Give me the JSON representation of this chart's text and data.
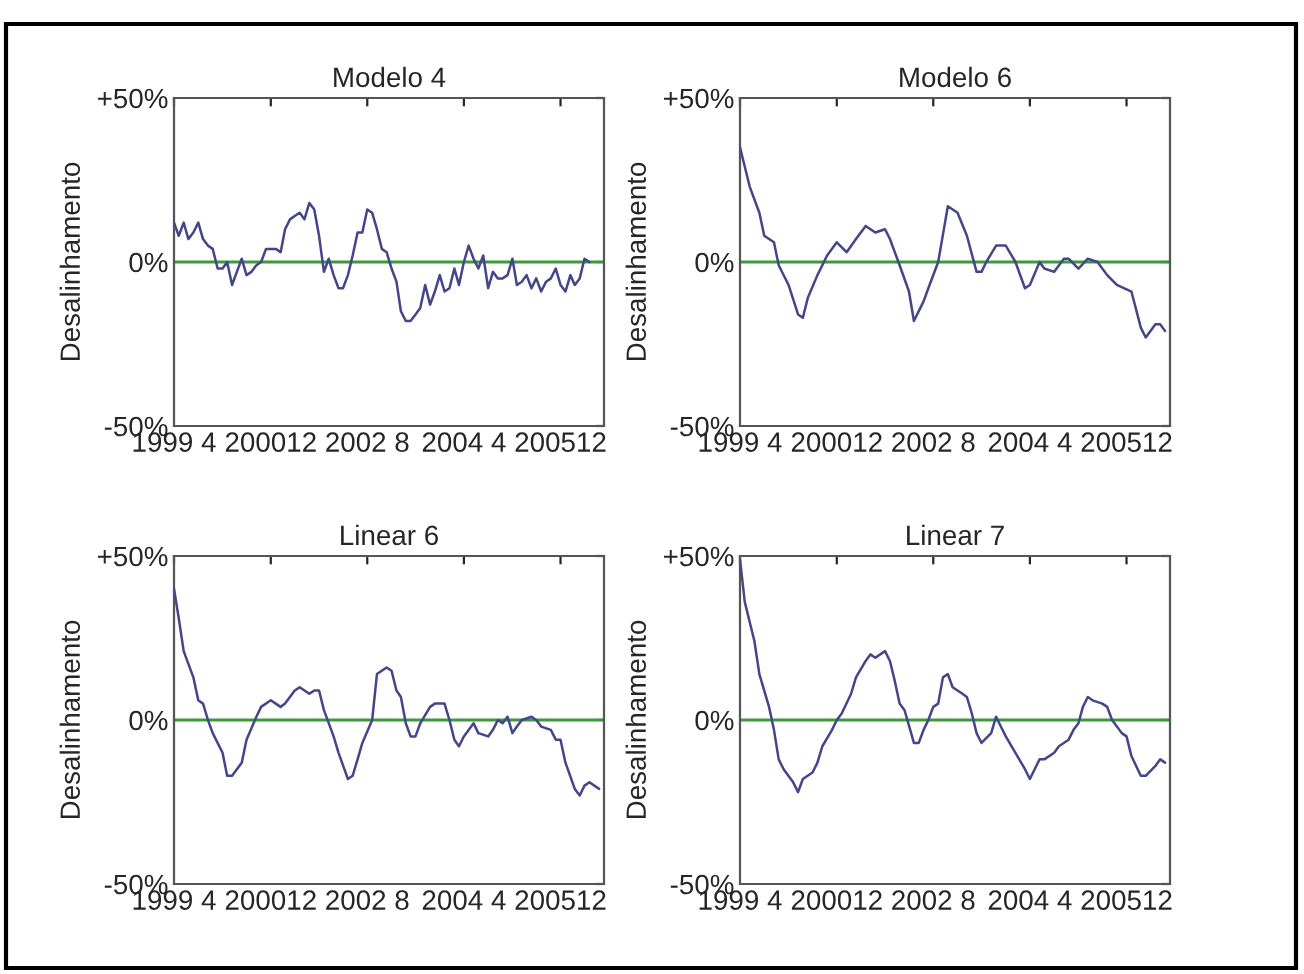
{
  "chart_data": [
    {
      "type": "line",
      "title": "Modelo 4",
      "ylabel": "Desalinhamento",
      "xlim": [
        "1999-04",
        "2006-09"
      ],
      "xticks": [
        {
          "value": "1999-04",
          "label": "1999 4"
        },
        {
          "value": "2000-12",
          "label": "200012"
        },
        {
          "value": "2002-08",
          "label": "2002 8"
        },
        {
          "value": "2004-04",
          "label": "2004 4"
        },
        {
          "value": "2005-12",
          "label": "200512"
        }
      ],
      "ylim": [
        -50,
        50
      ],
      "yticks": [
        {
          "value": -50,
          "label": "-50%"
        },
        {
          "value": 0,
          "label": "0%"
        },
        {
          "value": 50,
          "label": "+50%"
        }
      ],
      "grid": false,
      "legend": false,
      "ref_lines": [
        {
          "axis": "y",
          "value": 0,
          "color": "#3c9a3c"
        }
      ],
      "series": [
        {
          "color": "#45458a",
          "x": [
            "1999-04",
            "1999-05",
            "1999-06",
            "1999-07",
            "1999-08",
            "1999-09",
            "1999-10",
            "1999-11",
            "1999-12",
            "2000-01",
            "2000-02",
            "2000-03",
            "2000-04",
            "2000-05",
            "2000-06",
            "2000-07",
            "2000-08",
            "2000-09",
            "2000-10",
            "2000-11",
            "2000-12",
            "2001-01",
            "2001-02",
            "2001-03",
            "2001-04",
            "2001-05",
            "2001-06",
            "2001-07",
            "2001-08",
            "2001-09",
            "2001-10",
            "2001-11",
            "2001-12",
            "2002-01",
            "2002-02",
            "2002-03",
            "2002-04",
            "2002-05",
            "2002-06",
            "2002-07",
            "2002-08",
            "2002-09",
            "2002-10",
            "2002-11",
            "2002-12",
            "2003-01",
            "2003-02",
            "2003-03",
            "2003-04",
            "2003-05",
            "2003-06",
            "2003-07",
            "2003-08",
            "2003-09",
            "2003-10",
            "2003-11",
            "2003-12",
            "2004-01",
            "2004-02",
            "2004-03",
            "2004-04",
            "2004-05",
            "2004-06",
            "2004-07",
            "2004-08",
            "2004-09",
            "2004-10",
            "2004-11",
            "2004-12",
            "2005-01",
            "2005-02",
            "2005-03",
            "2005-04",
            "2005-05",
            "2005-06",
            "2005-07",
            "2005-08",
            "2005-09",
            "2005-10",
            "2005-11",
            "2005-12",
            "2006-01",
            "2006-02",
            "2006-03",
            "2006-04",
            "2006-05",
            "2006-06"
          ],
          "values": [
            12,
            8,
            12,
            7,
            9,
            12,
            7,
            5,
            4,
            -2,
            -2,
            0,
            -7,
            -3,
            1,
            -4,
            -3,
            -1,
            0,
            4,
            4,
            4,
            3,
            10,
            13,
            14,
            15,
            13,
            18,
            16,
            8,
            -3,
            1,
            -4,
            -8,
            -8,
            -4,
            2,
            9,
            9,
            16,
            15,
            10,
            4,
            3,
            -2,
            -6,
            -15,
            -18,
            -18,
            -16,
            -14,
            -7,
            -13,
            -9,
            -4,
            -9,
            -8,
            -2,
            -7,
            0,
            5,
            1,
            -2,
            2,
            -8,
            -3,
            -5,
            -5,
            -4,
            1,
            -7,
            -6,
            -4,
            -8,
            -5,
            -9,
            -6,
            -5,
            -2,
            -7,
            -9,
            -4,
            -7,
            -5,
            1,
            0
          ]
        }
      ]
    },
    {
      "type": "line",
      "title": "Modelo 6",
      "ylabel": "Desalinhamento",
      "xlim": [
        "1999-04",
        "2006-09"
      ],
      "xticks": [
        {
          "value": "1999-04",
          "label": "1999 4"
        },
        {
          "value": "2000-12",
          "label": "200012"
        },
        {
          "value": "2002-08",
          "label": "2002 8"
        },
        {
          "value": "2004-04",
          "label": "2004 4"
        },
        {
          "value": "2005-12",
          "label": "200512"
        }
      ],
      "ylim": [
        -50,
        50
      ],
      "yticks": [
        {
          "value": -50,
          "label": "-50%"
        },
        {
          "value": 0,
          "label": "0%"
        },
        {
          "value": 50,
          "label": "+50%"
        }
      ],
      "grid": false,
      "legend": false,
      "ref_lines": [
        {
          "axis": "y",
          "value": 0,
          "color": "#3c9a3c"
        }
      ],
      "series": [
        {
          "color": "#45458a",
          "x": [
            "1999-04",
            "1999-06",
            "1999-08",
            "1999-09",
            "1999-11",
            "1999-12",
            "2000-02",
            "2000-04",
            "2000-05",
            "2000-06",
            "2000-08",
            "2000-10",
            "2000-12",
            "2001-02",
            "2001-04",
            "2001-06",
            "2001-08",
            "2001-10",
            "2001-11",
            "2002-01",
            "2002-03",
            "2002-04",
            "2002-06",
            "2002-07",
            "2002-09",
            "2002-11",
            "2003-01",
            "2003-03",
            "2003-05",
            "2003-06",
            "2003-07",
            "2003-09",
            "2003-11",
            "2004-01",
            "2004-03",
            "2004-04",
            "2004-06",
            "2004-07",
            "2004-09",
            "2004-11",
            "2004-12",
            "2005-02",
            "2005-04",
            "2005-06",
            "2005-08",
            "2005-10",
            "2006-01",
            "2006-03",
            "2006-04",
            "2006-06",
            "2006-07",
            "2006-08"
          ],
          "values": [
            35,
            23,
            15,
            8,
            6,
            -1,
            -7,
            -16,
            -17,
            -11,
            -4,
            2,
            6,
            3,
            7,
            11,
            9,
            10,
            7,
            -1,
            -9,
            -18,
            -12,
            -8,
            0,
            17,
            15,
            8,
            -3,
            -3,
            0,
            5,
            5,
            0,
            -8,
            -7,
            0,
            -2,
            -3,
            1,
            1,
            -2,
            1,
            0,
            -4,
            -7,
            -9,
            -20,
            -23,
            -19,
            -19,
            -21
          ]
        }
      ]
    },
    {
      "type": "line",
      "title": "Linear 6",
      "ylabel": "Desalinhamento",
      "xlim": [
        "1999-04",
        "2006-09"
      ],
      "xticks": [
        {
          "value": "1999-04",
          "label": "1999 4"
        },
        {
          "value": "2000-12",
          "label": "200012"
        },
        {
          "value": "2002-08",
          "label": "2002 8"
        },
        {
          "value": "2004-04",
          "label": "2004 4"
        },
        {
          "value": "2005-12",
          "label": "200512"
        }
      ],
      "ylim": [
        -50,
        50
      ],
      "yticks": [
        {
          "value": -50,
          "label": "-50%"
        },
        {
          "value": 0,
          "label": "0%"
        },
        {
          "value": 50,
          "label": "+50%"
        }
      ],
      "grid": false,
      "legend": false,
      "ref_lines": [
        {
          "axis": "y",
          "value": 0,
          "color": "#3c9a3c"
        }
      ],
      "series": [
        {
          "color": "#45458a",
          "x": [
            "1999-04",
            "1999-05",
            "1999-06",
            "1999-08",
            "1999-09",
            "1999-10",
            "1999-11",
            "1999-12",
            "2000-02",
            "2000-03",
            "2000-04",
            "2000-06",
            "2000-07",
            "2000-09",
            "2000-10",
            "2000-12",
            "2001-01",
            "2001-02",
            "2001-03",
            "2001-05",
            "2001-06",
            "2001-08",
            "2001-09",
            "2001-10",
            "2001-11",
            "2002-01",
            "2002-02",
            "2002-04",
            "2002-05",
            "2002-06",
            "2002-07",
            "2002-09",
            "2002-10",
            "2002-12",
            "2003-01",
            "2003-02",
            "2003-03",
            "2003-04",
            "2003-05",
            "2003-06",
            "2003-07",
            "2003-09",
            "2003-10",
            "2003-12",
            "2004-01",
            "2004-02",
            "2004-03",
            "2004-04",
            "2004-06",
            "2004-07",
            "2004-09",
            "2004-10",
            "2004-11",
            "2004-12",
            "2005-01",
            "2005-02",
            "2005-03",
            "2005-04",
            "2005-06",
            "2005-07",
            "2005-08",
            "2005-10",
            "2005-11",
            "2005-12",
            "2006-01",
            "2006-03",
            "2006-04",
            "2006-05",
            "2006-06",
            "2006-08"
          ],
          "values": [
            40,
            31,
            21,
            13,
            6,
            5,
            0,
            -4,
            -10,
            -17,
            -17,
            -13,
            -6,
            1,
            4,
            6,
            5,
            4,
            5,
            9,
            10,
            8,
            9,
            9,
            3,
            -5,
            -10,
            -18,
            -17,
            -12,
            -7,
            0,
            14,
            16,
            15,
            9,
            7,
            -1,
            -5,
            -5,
            -1,
            4,
            5,
            5,
            0,
            -6,
            -8,
            -5,
            -1,
            -4,
            -5,
            -3,
            0,
            -1,
            1,
            -4,
            -2,
            0,
            1,
            0,
            -2,
            -3,
            -6,
            -6,
            -13,
            -21,
            -23,
            -20,
            -19,
            -21
          ]
        }
      ]
    },
    {
      "type": "line",
      "title": "Linear 7",
      "ylabel": "Desalinhamento",
      "xlim": [
        "1999-04",
        "2006-09"
      ],
      "xticks": [
        {
          "value": "1999-04",
          "label": "1999 4"
        },
        {
          "value": "2000-12",
          "label": "200012"
        },
        {
          "value": "2002-08",
          "label": "2002 8"
        },
        {
          "value": "2004-04",
          "label": "2004 4"
        },
        {
          "value": "2005-12",
          "label": "200512"
        }
      ],
      "ylim": [
        -50,
        50
      ],
      "yticks": [
        {
          "value": -50,
          "label": "-50%"
        },
        {
          "value": 0,
          "label": "0%"
        },
        {
          "value": 50,
          "label": "+50%"
        }
      ],
      "grid": false,
      "legend": false,
      "ref_lines": [
        {
          "axis": "y",
          "value": 0,
          "color": "#3c9a3c"
        }
      ],
      "series": [
        {
          "color": "#45458a",
          "x": [
            "1999-04",
            "1999-05",
            "1999-07",
            "1999-08",
            "1999-10",
            "1999-11",
            "1999-12",
            "2000-01",
            "2000-03",
            "2000-04",
            "2000-05",
            "2000-07",
            "2000-08",
            "2000-09",
            "2000-11",
            "2000-12",
            "2001-01",
            "2001-03",
            "2001-04",
            "2001-06",
            "2001-07",
            "2001-08",
            "2001-10",
            "2001-11",
            "2001-12",
            "2002-01",
            "2002-02",
            "2002-04",
            "2002-05",
            "2002-06",
            "2002-07",
            "2002-08",
            "2002-09",
            "2002-10",
            "2002-11",
            "2002-12",
            "2003-02",
            "2003-03",
            "2003-04",
            "2003-05",
            "2003-06",
            "2003-08",
            "2003-09",
            "2003-10",
            "2003-11",
            "2004-01",
            "2004-03",
            "2004-04",
            "2004-05",
            "2004-06",
            "2004-07",
            "2004-09",
            "2004-10",
            "2004-12",
            "2005-01",
            "2005-02",
            "2005-03",
            "2005-04",
            "2005-05",
            "2005-07",
            "2005-08",
            "2005-09",
            "2005-11",
            "2005-12",
            "2006-01",
            "2006-03",
            "2006-04",
            "2006-06",
            "2006-07",
            "2006-08"
          ],
          "values": [
            49,
            36,
            24,
            14,
            4,
            -3,
            -12,
            -15,
            -19,
            -22,
            -18,
            -16,
            -13,
            -8,
            -3,
            0,
            2,
            8,
            13,
            18,
            20,
            19,
            21,
            18,
            12,
            5,
            3,
            -7,
            -7,
            -3,
            0,
            4,
            5,
            13,
            14,
            10,
            8,
            7,
            2,
            -4,
            -7,
            -4,
            1,
            -2,
            -5,
            -10,
            -15,
            -18,
            -15,
            -12,
            -12,
            -10,
            -8,
            -6,
            -3,
            -1,
            4,
            7,
            6,
            5,
            4,
            0,
            -4,
            -5,
            -11,
            -17,
            -17,
            -14,
            -12,
            -13
          ]
        }
      ]
    }
  ]
}
